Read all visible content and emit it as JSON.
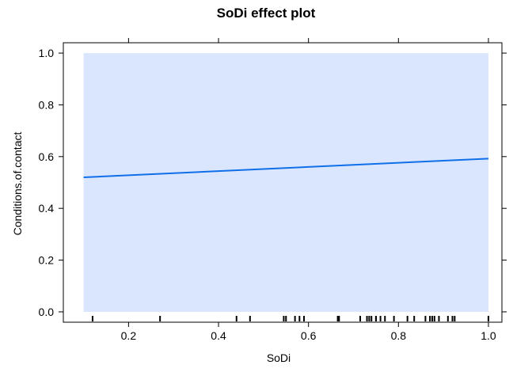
{
  "chart_data": {
    "type": "line",
    "title": "SoDi effect plot",
    "xlabel": "SoDi",
    "ylabel": "Conditions.of.contact",
    "xlim": [
      0.1,
      1.0
    ],
    "ylim": [
      0.0,
      1.0
    ],
    "x_ticks": [
      0.2,
      0.4,
      0.6,
      0.8,
      1.0
    ],
    "x_tick_labels": [
      "0.2",
      "0.4",
      "0.6",
      "0.8",
      "1.0"
    ],
    "y_ticks": [
      0.0,
      0.2,
      0.4,
      0.6,
      0.8,
      1.0
    ],
    "y_tick_labels": [
      "0.0",
      "0.2",
      "0.4",
      "0.6",
      "0.8",
      "1.0"
    ],
    "grid": false,
    "series": [
      {
        "x": [
          0.1,
          1.0
        ],
        "y": [
          0.52,
          0.592
        ],
        "color": "#0f6fe8"
      }
    ],
    "confidence_band": {
      "x": [
        0.1,
        1.0
      ],
      "lower": [
        0.0,
        0.0
      ],
      "upper": [
        1.0,
        1.0
      ],
      "color": "#dae6fd"
    },
    "rug": [
      0.12,
      0.27,
      0.44,
      0.47,
      0.545,
      0.55,
      0.57,
      0.58,
      0.59,
      0.665,
      0.668,
      0.715,
      0.73,
      0.735,
      0.74,
      0.75,
      0.75,
      0.76,
      0.77,
      0.79,
      0.82,
      0.835,
      0.86,
      0.87,
      0.875,
      0.88,
      0.89,
      0.91,
      0.92,
      0.925,
      1.0,
      1.0
    ]
  }
}
